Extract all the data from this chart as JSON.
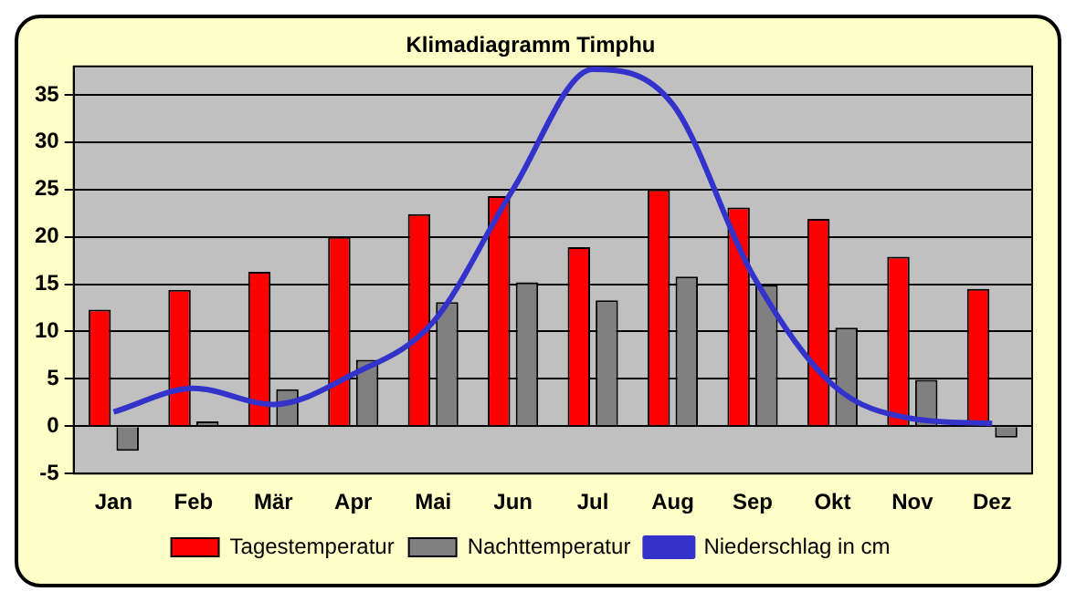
{
  "chart_data": {
    "type": "bar",
    "title": "Klimadiagramm Timphu",
    "categories": [
      "Jan",
      "Feb",
      "Mär",
      "Apr",
      "Mai",
      "Jun",
      "Jul",
      "Aug",
      "Sep",
      "Okt",
      "Nov",
      "Dez"
    ],
    "series": [
      {
        "name": "Tagestemperatur",
        "color": "#ff0000",
        "values": [
          12.3,
          14.4,
          16.3,
          20,
          22.4,
          24.3,
          18.9,
          25,
          23.1,
          21.9,
          17.9,
          14.5
        ]
      },
      {
        "name": "Nachttemperatur",
        "color": "#808080",
        "values": [
          -2.6,
          0.5,
          3.9,
          7,
          13.1,
          15.2,
          13.3,
          15.8,
          14.9,
          10.4,
          4.9,
          -1.2
        ]
      },
      {
        "name": "Niederschlag in cm",
        "type": "line",
        "color": "#3333cc",
        "values": [
          1.5,
          4,
          2.3,
          5.5,
          11,
          25,
          37.7,
          34,
          16,
          4.4,
          0.8,
          0.3
        ]
      }
    ],
    "ylim": [
      -5,
      38
    ],
    "yticks": [
      -5,
      0,
      5,
      10,
      15,
      20,
      25,
      30,
      35
    ],
    "grid": "y",
    "legend": "bottom",
    "marker": "none"
  }
}
